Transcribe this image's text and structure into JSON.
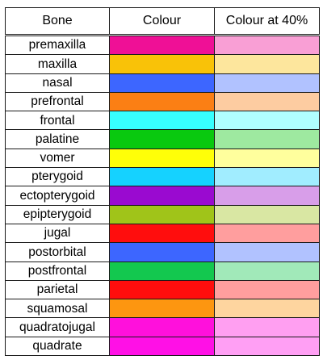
{
  "table": {
    "headers": [
      "Bone",
      "Colour",
      "Colour at 40%"
    ],
    "rows": [
      {
        "bone": "premaxilla",
        "colour": "#ef1096",
        "colour_40": "#f99fd5"
      },
      {
        "bone": "maxilla",
        "colour": "#f9c208",
        "colour_40": "#fde69d"
      },
      {
        "bone": "nasal",
        "colour": "#3d66ff",
        "colour_40": "#b1c2ff"
      },
      {
        "bone": "prefrontal",
        "colour": "#fb7f14",
        "colour_40": "#fdcca1"
      },
      {
        "bone": "frontal",
        "colour": "#37ffff",
        "colour_40": "#b0ffff"
      },
      {
        "bone": "palatine",
        "colour": "#09c90f",
        "colour_40": "#9ee9a0"
      },
      {
        "bone": "vomer",
        "colour": "#ffff08",
        "colour_40": "#ffff9d"
      },
      {
        "bone": "pterygoid",
        "colour": "#15d2ff",
        "colour_40": "#a1edff"
      },
      {
        "bone": "ectopterygoid",
        "colour": "#9a0ad0",
        "colour_40": "#d89ee9"
      },
      {
        "bone": "epipterygoid",
        "colour": "#a0c419",
        "colour_40": "#d9e7a3"
      },
      {
        "bone": "jugal",
        "colour": "#ff0d0d",
        "colour_40": "#ff9e9e"
      },
      {
        "bone": "postorbital",
        "colour": "#3d66ff",
        "colour_40": "#b1c2ff"
      },
      {
        "bone": "postfrontal",
        "colour": "#13c84f",
        "colour_40": "#a1e9b9"
      },
      {
        "bone": "parietal",
        "colour": "#ff0d0d",
        "colour_40": "#ff9e9e"
      },
      {
        "bone": "squamosal",
        "colour": "#fd9610",
        "colour_40": "#fed59f"
      },
      {
        "bone": "quadratojugal",
        "colour": "#ff10dc",
        "colour_40": "#ff9ff1"
      },
      {
        "bone": "quadrate",
        "colour": "#ff10e6",
        "colour_40": "#ff9ff4"
      }
    ]
  }
}
